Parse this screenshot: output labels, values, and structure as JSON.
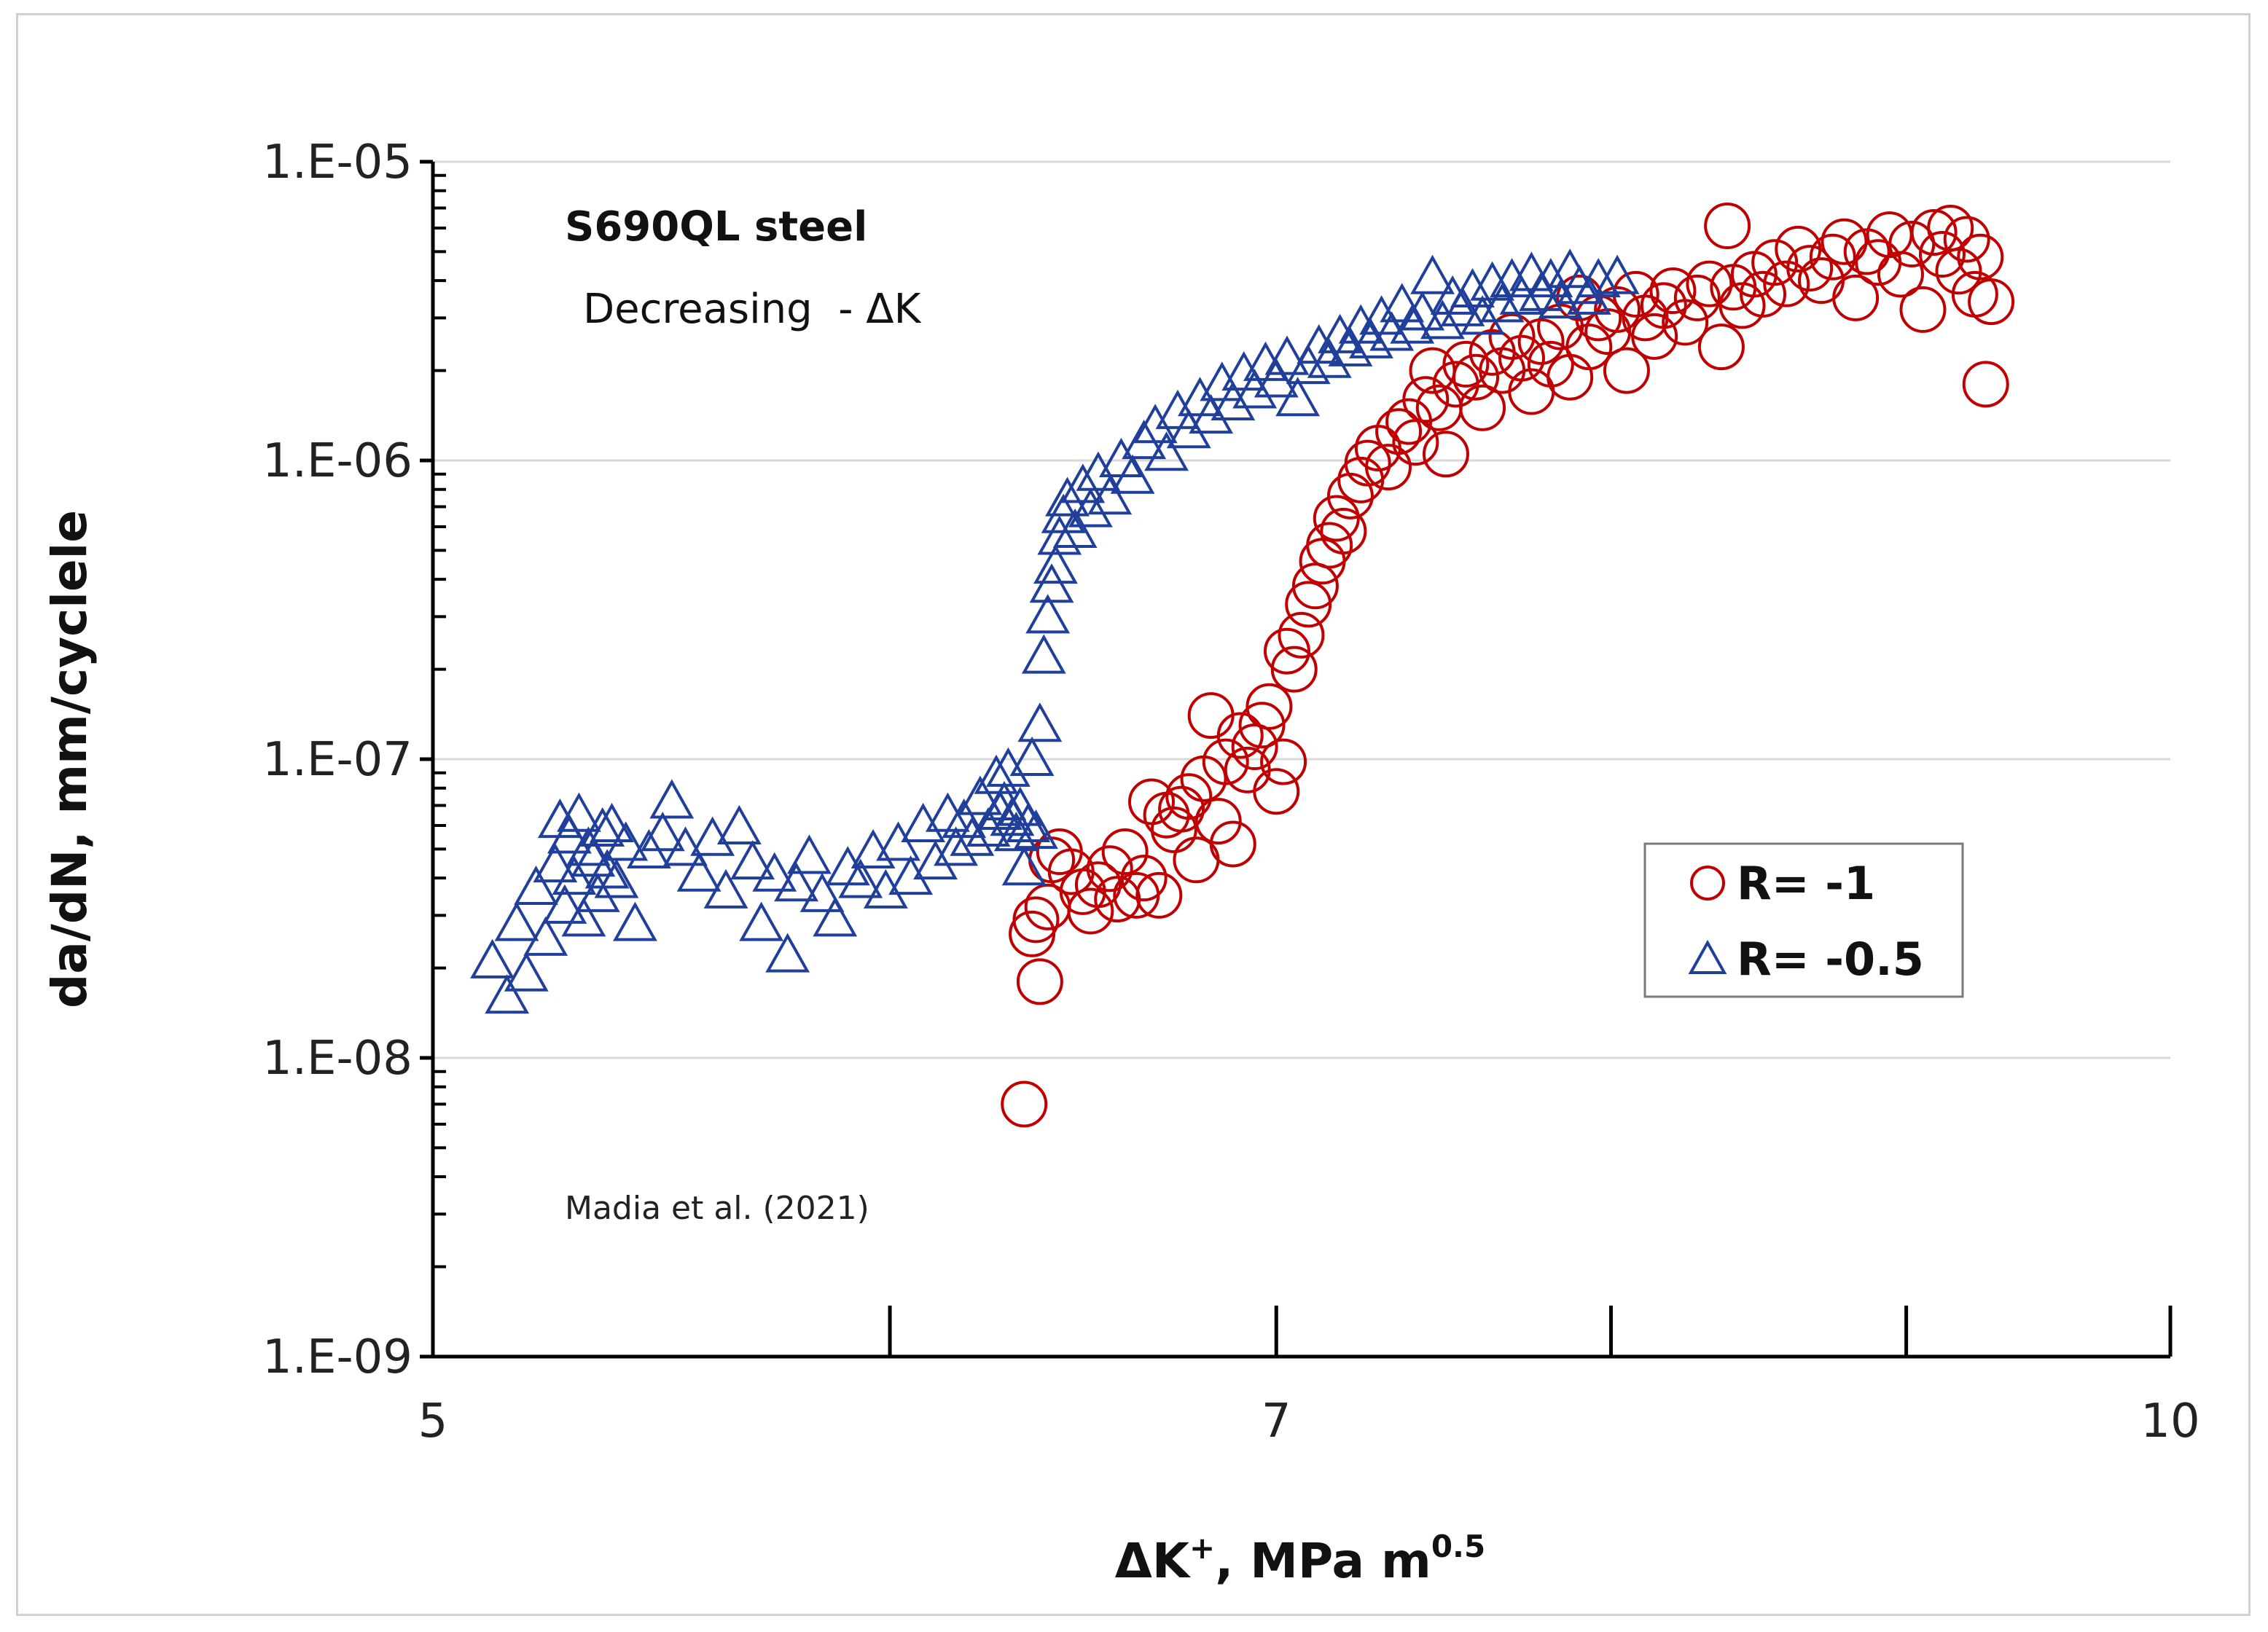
{
  "chart_data": {
    "type": "scatter",
    "title": "",
    "xlabel": "ΔK⁺, MPa m⁰·⁵",
    "xlabel_parts": {
      "main": "ΔK",
      "sup1": "+",
      "unit": ", MPa m",
      "sup2": "0.5"
    },
    "ylabel": "da/dN, mm/cyclele",
    "x_scale": "log",
    "y_scale": "log",
    "xlim": [
      5,
      10
    ],
    "ylim": [
      1e-09,
      1e-05
    ],
    "x_ticks": [
      5,
      7,
      10
    ],
    "y_ticks": [
      1e-09,
      1e-08,
      1e-07,
      1e-06,
      1e-05
    ],
    "x_tick_labels": [
      "5",
      "7",
      "10"
    ],
    "y_tick_labels": [
      "1.E-09",
      "1.E-08",
      "1.E-07",
      "1.E-06",
      "1.E-05"
    ],
    "grid": "horizontal major",
    "legend_position": "right-middle",
    "annotations": {
      "material": "S690QL steel",
      "method": "Decreasing  - ΔK",
      "source": "Madia et al. (2021)"
    },
    "series": [
      {
        "name": "R= -1",
        "label": "R= -1",
        "marker": "circle",
        "color": "#c00000",
        "points": [
          [
            6.33,
            7e-09
          ],
          [
            6.37,
            1.8e-08
          ],
          [
            6.35,
            2.6e-08
          ],
          [
            6.36,
            2.9e-08
          ],
          [
            6.39,
            3.2e-08
          ],
          [
            6.4,
            4.6e-08
          ],
          [
            6.42,
            4.9e-08
          ],
          [
            6.45,
            4.2e-08
          ],
          [
            6.48,
            3.6e-08
          ],
          [
            6.5,
            3.1e-08
          ],
          [
            6.52,
            3.8e-08
          ],
          [
            6.55,
            4.3e-08
          ],
          [
            6.57,
            3.4e-08
          ],
          [
            6.59,
            4.9e-08
          ],
          [
            6.62,
            3.5e-08
          ],
          [
            6.64,
            4e-08
          ],
          [
            6.66,
            7.2e-08
          ],
          [
            6.68,
            3.5e-08
          ],
          [
            6.7,
            6.5e-08
          ],
          [
            6.72,
            5.8e-08
          ],
          [
            6.74,
            6.8e-08
          ],
          [
            6.76,
            7.5e-08
          ],
          [
            6.78,
            4.6e-08
          ],
          [
            6.8,
            8.6e-08
          ],
          [
            6.82,
            1.4e-07
          ],
          [
            6.84,
            6.2e-08
          ],
          [
            6.86,
            9.8e-08
          ],
          [
            6.88,
            5.2e-08
          ],
          [
            6.9,
            1.2e-07
          ],
          [
            6.92,
            9.2e-08
          ],
          [
            6.94,
            1.1e-07
          ],
          [
            6.96,
            1.3e-07
          ],
          [
            6.98,
            1.5e-07
          ],
          [
            7.0,
            7.8e-08
          ],
          [
            7.02,
            9.8e-08
          ],
          [
            7.03,
            2.3e-07
          ],
          [
            7.05,
            2e-07
          ],
          [
            7.07,
            2.6e-07
          ],
          [
            7.09,
            3.3e-07
          ],
          [
            7.11,
            3.8e-07
          ],
          [
            7.13,
            4.6e-07
          ],
          [
            7.15,
            5.2e-07
          ],
          [
            7.17,
            6.4e-07
          ],
          [
            7.19,
            5.8e-07
          ],
          [
            7.21,
            7.6e-07
          ],
          [
            7.24,
            8.6e-07
          ],
          [
            7.26,
            9.8e-07
          ],
          [
            7.29,
            1.1e-06
          ],
          [
            7.32,
            9.5e-07
          ],
          [
            7.35,
            1.25e-06
          ],
          [
            7.38,
            1.35e-06
          ],
          [
            7.4,
            1.15e-06
          ],
          [
            7.43,
            1.6e-06
          ],
          [
            7.45,
            2e-06
          ],
          [
            7.47,
            1.5e-06
          ],
          [
            7.49,
            1.05e-06
          ],
          [
            7.52,
            1.8e-06
          ],
          [
            7.55,
            2.1e-06
          ],
          [
            7.58,
            1.9e-06
          ],
          [
            7.6,
            1.5e-06
          ],
          [
            7.63,
            2.3e-06
          ],
          [
            7.66,
            2e-06
          ],
          [
            7.69,
            2.6e-06
          ],
          [
            7.72,
            2.2e-06
          ],
          [
            7.75,
            1.7e-06
          ],
          [
            7.78,
            2.5e-06
          ],
          [
            7.81,
            2.1e-06
          ],
          [
            7.84,
            2.8e-06
          ],
          [
            7.87,
            1.9e-06
          ],
          [
            7.9,
            3.5e-06
          ],
          [
            7.93,
            2.4e-06
          ],
          [
            7.96,
            3e-06
          ],
          [
            7.99,
            2.7e-06
          ],
          [
            8.02,
            3.2e-06
          ],
          [
            8.05,
            2e-06
          ],
          [
            8.08,
            3.6e-06
          ],
          [
            8.11,
            3e-06
          ],
          [
            8.14,
            2.6e-06
          ],
          [
            8.17,
            3.3e-06
          ],
          [
            8.2,
            3.7e-06
          ],
          [
            8.24,
            2.9e-06
          ],
          [
            8.28,
            3.5e-06
          ],
          [
            8.32,
            3.9e-06
          ],
          [
            8.36,
            2.4e-06
          ],
          [
            8.38,
            6.1e-06
          ],
          [
            8.4,
            3.8e-06
          ],
          [
            8.43,
            3.3e-06
          ],
          [
            8.47,
            4.2e-06
          ],
          [
            8.5,
            3.6e-06
          ],
          [
            8.54,
            4.6e-06
          ],
          [
            8.58,
            3.9e-06
          ],
          [
            8.62,
            5.1e-06
          ],
          [
            8.66,
            4.4e-06
          ],
          [
            8.7,
            4e-06
          ],
          [
            8.74,
            4.8e-06
          ],
          [
            8.78,
            5.4e-06
          ],
          [
            8.82,
            3.5e-06
          ],
          [
            8.86,
            5e-06
          ],
          [
            8.9,
            4.6e-06
          ],
          [
            8.94,
            5.7e-06
          ],
          [
            8.98,
            4.2e-06
          ],
          [
            9.02,
            5.3e-06
          ],
          [
            9.06,
            3.2e-06
          ],
          [
            9.1,
            5.8e-06
          ],
          [
            9.13,
            4.9e-06
          ],
          [
            9.16,
            6e-06
          ],
          [
            9.19,
            4.3e-06
          ],
          [
            9.22,
            5.5e-06
          ],
          [
            9.25,
            3.6e-06
          ],
          [
            9.27,
            4.8e-06
          ],
          [
            9.29,
            1.8e-06
          ],
          [
            9.31,
            3.4e-06
          ]
        ]
      },
      {
        "name": "R= -0.5",
        "label": "R= -0.5",
        "marker": "triangle",
        "color": "#1f3f9a",
        "points": [
          [
            5.12,
            2.1e-08
          ],
          [
            5.15,
            1.6e-08
          ],
          [
            5.17,
            2.8e-08
          ],
          [
            5.19,
            1.9e-08
          ],
          [
            5.21,
            3.7e-08
          ],
          [
            5.23,
            2.5e-08
          ],
          [
            5.25,
            4.4e-08
          ],
          [
            5.26,
            6.2e-08
          ],
          [
            5.27,
            3.2e-08
          ],
          [
            5.28,
            5.5e-08
          ],
          [
            5.29,
            4e-08
          ],
          [
            5.3,
            6.5e-08
          ],
          [
            5.31,
            2.9e-08
          ],
          [
            5.32,
            5e-08
          ],
          [
            5.33,
            4.6e-08
          ],
          [
            5.34,
            3.5e-08
          ],
          [
            5.35,
            5.8e-08
          ],
          [
            5.36,
            4.2e-08
          ],
          [
            5.37,
            6e-08
          ],
          [
            5.38,
            3.9e-08
          ],
          [
            5.4,
            5.2e-08
          ],
          [
            5.42,
            2.8e-08
          ],
          [
            5.45,
            4.9e-08
          ],
          [
            5.48,
            5.6e-08
          ],
          [
            5.5,
            7.2e-08
          ],
          [
            5.53,
            5e-08
          ],
          [
            5.56,
            4.1e-08
          ],
          [
            5.59,
            5.4e-08
          ],
          [
            5.62,
            3.6e-08
          ],
          [
            5.65,
            5.9e-08
          ],
          [
            5.68,
            4.5e-08
          ],
          [
            5.7,
            2.8e-08
          ],
          [
            5.73,
            4.1e-08
          ],
          [
            5.76,
            2.2e-08
          ],
          [
            5.78,
            3.8e-08
          ],
          [
            5.81,
            4.7e-08
          ],
          [
            5.84,
            3.5e-08
          ],
          [
            5.87,
            2.9e-08
          ],
          [
            5.9,
            4.3e-08
          ],
          [
            5.93,
            3.9e-08
          ],
          [
            5.96,
            4.9e-08
          ],
          [
            5.99,
            3.6e-08
          ],
          [
            6.02,
            5.2e-08
          ],
          [
            6.05,
            4e-08
          ],
          [
            6.08,
            6e-08
          ],
          [
            6.11,
            4.5e-08
          ],
          [
            6.14,
            6.5e-08
          ],
          [
            6.16,
            5e-08
          ],
          [
            6.18,
            6.2e-08
          ],
          [
            6.2,
            5.4e-08
          ],
          [
            6.22,
            7.4e-08
          ],
          [
            6.24,
            5.8e-08
          ],
          [
            6.26,
            8.7e-08
          ],
          [
            6.27,
            6.6e-08
          ],
          [
            6.28,
            7.1e-08
          ],
          [
            6.29,
            9.2e-08
          ],
          [
            6.3,
            6.3e-08
          ],
          [
            6.31,
            5.6e-08
          ],
          [
            6.32,
            6.8e-08
          ],
          [
            6.33,
            4.3e-08
          ],
          [
            6.34,
            6e-08
          ],
          [
            6.35,
            1e-07
          ],
          [
            6.36,
            5.7e-08
          ],
          [
            6.37,
            1.3e-07
          ],
          [
            6.38,
            2.2e-07
          ],
          [
            6.39,
            3e-07
          ],
          [
            6.4,
            3.8e-07
          ],
          [
            6.41,
            4.4e-07
          ],
          [
            6.42,
            5.5e-07
          ],
          [
            6.43,
            6.5e-07
          ],
          [
            6.44,
            7.4e-07
          ],
          [
            6.46,
            5.8e-07
          ],
          [
            6.48,
            8.2e-07
          ],
          [
            6.5,
            6.8e-07
          ],
          [
            6.52,
            9e-07
          ],
          [
            6.55,
            7.5e-07
          ],
          [
            6.58,
            1e-06
          ],
          [
            6.61,
            8.8e-07
          ],
          [
            6.64,
            1.15e-06
          ],
          [
            6.67,
            1.3e-06
          ],
          [
            6.7,
            1.05e-06
          ],
          [
            6.73,
            1.45e-06
          ],
          [
            6.76,
            1.25e-06
          ],
          [
            6.79,
            1.6e-06
          ],
          [
            6.82,
            1.4e-06
          ],
          [
            6.85,
            1.8e-06
          ],
          [
            6.88,
            1.55e-06
          ],
          [
            6.91,
            1.95e-06
          ],
          [
            6.94,
            1.7e-06
          ],
          [
            6.97,
            2.1e-06
          ],
          [
            7.0,
            1.85e-06
          ],
          [
            7.03,
            2.2e-06
          ],
          [
            7.06,
            1.6e-06
          ],
          [
            7.09,
            2.05e-06
          ],
          [
            7.12,
            2.4e-06
          ],
          [
            7.15,
            2.15e-06
          ],
          [
            7.18,
            2.6e-06
          ],
          [
            7.21,
            2.35e-06
          ],
          [
            7.24,
            2.8e-06
          ],
          [
            7.27,
            2.5e-06
          ],
          [
            7.3,
            3e-06
          ],
          [
            7.33,
            2.65e-06
          ],
          [
            7.36,
            3.3e-06
          ],
          [
            7.39,
            2.8e-06
          ],
          [
            7.42,
            3.1e-06
          ],
          [
            7.45,
            4.1e-06
          ],
          [
            7.48,
            2.9e-06
          ],
          [
            7.51,
            3.5e-06
          ],
          [
            7.54,
            3.2e-06
          ],
          [
            7.57,
            3.7e-06
          ],
          [
            7.6,
            3e-06
          ],
          [
            7.63,
            3.9e-06
          ],
          [
            7.66,
            3.3e-06
          ],
          [
            7.69,
            4e-06
          ],
          [
            7.72,
            3.5e-06
          ],
          [
            7.75,
            4.2e-06
          ],
          [
            7.78,
            3.6e-06
          ],
          [
            7.81,
            4e-06
          ],
          [
            7.84,
            3.4e-06
          ],
          [
            7.87,
            4.3e-06
          ],
          [
            7.9,
            3.8e-06
          ],
          [
            7.93,
            3.5e-06
          ],
          [
            7.96,
            4e-06
          ],
          [
            8.02,
            4.1e-06
          ]
        ]
      }
    ]
  }
}
